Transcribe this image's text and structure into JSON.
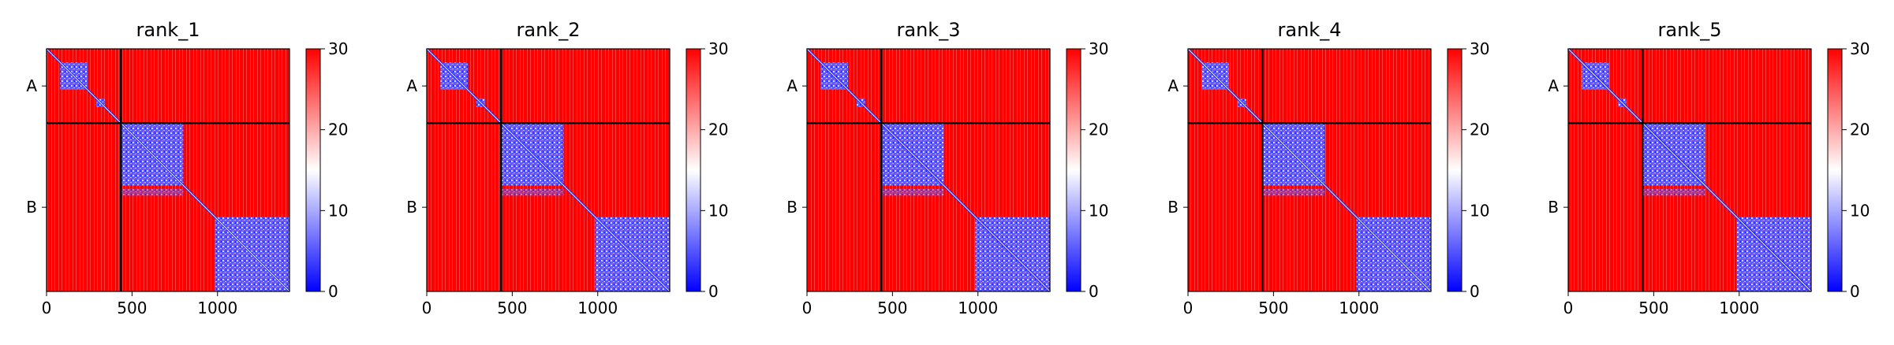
{
  "chart_data": [
    {
      "type": "heatmap",
      "title": "rank_1",
      "ytick_labels": [
        "A",
        "B"
      ],
      "xticks": [
        0,
        500,
        1000
      ],
      "xlim": [
        0,
        1421
      ],
      "chain_break": 435,
      "colorbar": {
        "min": 0,
        "max": 30,
        "ticks": [
          0,
          10,
          20,
          30
        ],
        "colormap": "bwr"
      }
    },
    {
      "type": "heatmap",
      "title": "rank_2",
      "ytick_labels": [
        "A",
        "B"
      ],
      "xticks": [
        0,
        500,
        1000
      ],
      "xlim": [
        0,
        1421
      ],
      "chain_break": 435,
      "colorbar": {
        "min": 0,
        "max": 30,
        "ticks": [
          0,
          10,
          20,
          30
        ],
        "colormap": "bwr"
      }
    },
    {
      "type": "heatmap",
      "title": "rank_3",
      "ytick_labels": [
        "A",
        "B"
      ],
      "xticks": [
        0,
        500,
        1000
      ],
      "xlim": [
        0,
        1421
      ],
      "chain_break": 435,
      "colorbar": {
        "min": 0,
        "max": 30,
        "ticks": [
          0,
          10,
          20,
          30
        ],
        "colormap": "bwr"
      }
    },
    {
      "type": "heatmap",
      "title": "rank_4",
      "ytick_labels": [
        "A",
        "B"
      ],
      "xticks": [
        0,
        500,
        1000
      ],
      "xlim": [
        0,
        1421
      ],
      "chain_break": 435,
      "colorbar": {
        "min": 0,
        "max": 30,
        "ticks": [
          0,
          10,
          20,
          30
        ],
        "colormap": "bwr"
      }
    },
    {
      "type": "heatmap",
      "title": "rank_5",
      "ytick_labels": [
        "A",
        "B"
      ],
      "xticks": [
        0,
        500,
        1000
      ],
      "xlim": [
        0,
        1421
      ],
      "chain_break": 435,
      "colorbar": {
        "min": 0,
        "max": 30,
        "ticks": [
          0,
          10,
          20,
          30
        ],
        "colormap": "bwr"
      }
    }
  ],
  "colors": {
    "high": "#ff0000",
    "mid": "#ffffff",
    "low": "#0000ff",
    "frame": "#000000"
  }
}
